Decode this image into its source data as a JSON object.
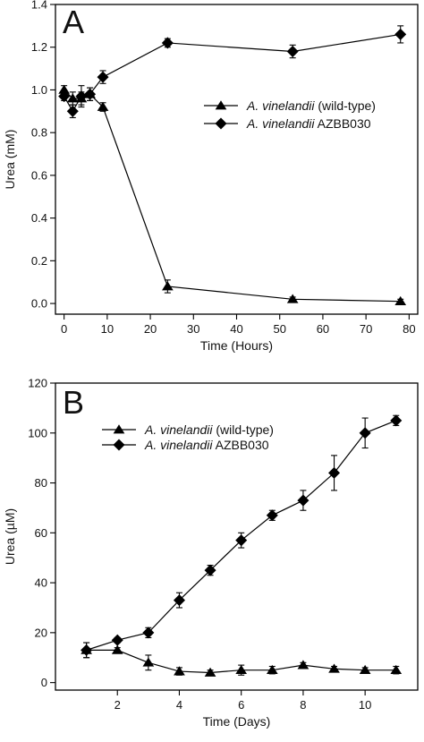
{
  "colors": {
    "ink": "#000000",
    "background": "#ffffff"
  },
  "chart_data": [
    {
      "type": "line",
      "panel_label": "A",
      "xlabel": "Time (Hours)",
      "ylabel": "Urea (mM)",
      "xlim": [
        -2,
        82
      ],
      "ylim": [
        -0.05,
        1.4
      ],
      "xticks": [
        0,
        10,
        20,
        30,
        40,
        50,
        60,
        70,
        80
      ],
      "yticks": [
        0.0,
        0.2,
        0.4,
        0.6,
        0.8,
        1.0,
        1.2,
        1.4
      ],
      "ytick_format": 1,
      "legend_position": "center-right",
      "grid": false,
      "series": [
        {
          "name_italic": "A. vinelandii",
          "name_suffix": " (wild-type)",
          "marker": "triangle",
          "x": [
            0,
            2,
            4,
            6,
            9,
            24,
            53,
            78
          ],
          "y": [
            1.0,
            0.96,
            0.96,
            0.98,
            0.92,
            0.08,
            0.02,
            0.01
          ],
          "err": [
            0.02,
            0.03,
            0.03,
            0.03,
            0.02,
            0.03,
            0.01,
            0.01
          ]
        },
        {
          "name_italic": "A. vinelandii",
          "name_suffix": " AZBB030",
          "marker": "diamond",
          "x": [
            0,
            2,
            4,
            6,
            9,
            24,
            53,
            78
          ],
          "y": [
            0.97,
            0.9,
            0.97,
            0.98,
            1.06,
            1.22,
            1.18,
            1.26
          ],
          "err": [
            0.02,
            0.03,
            0.05,
            0.03,
            0.03,
            0.02,
            0.03,
            0.04
          ]
        }
      ]
    },
    {
      "type": "line",
      "panel_label": "B",
      "xlabel": "Time (Days)",
      "ylabel": "Urea (µM)",
      "xlim": [
        0,
        11.7
      ],
      "ylim": [
        -3,
        120
      ],
      "xticks": [
        2,
        4,
        6,
        8,
        10
      ],
      "yticks": [
        0,
        20,
        40,
        60,
        80,
        100,
        120
      ],
      "ytick_format": 0,
      "legend_position": "top-left",
      "grid": false,
      "series": [
        {
          "name_italic": "A. vinelandii",
          "name_suffix": " (wild-type)",
          "marker": "triangle",
          "x": [
            1,
            2,
            3,
            4,
            5,
            6,
            7,
            8,
            9,
            10,
            11
          ],
          "y": [
            13,
            13,
            8,
            4.5,
            4,
            5,
            5,
            7,
            5.5,
            5,
            5
          ],
          "err": [
            3,
            1,
            3,
            1.5,
            1,
            2,
            1.5,
            1,
            1,
            1,
            1.5
          ]
        },
        {
          "name_italic": "A. vinelandii",
          "name_suffix": " AZBB030",
          "marker": "diamond",
          "x": [
            1,
            2,
            3,
            4,
            5,
            6,
            7,
            8,
            9,
            10,
            11
          ],
          "y": [
            13,
            17,
            20,
            33,
            45,
            57,
            67,
            73,
            84,
            100,
            105
          ],
          "err": [
            3,
            1,
            2,
            3,
            2,
            3,
            2,
            4,
            7,
            6,
            2
          ]
        }
      ]
    }
  ]
}
